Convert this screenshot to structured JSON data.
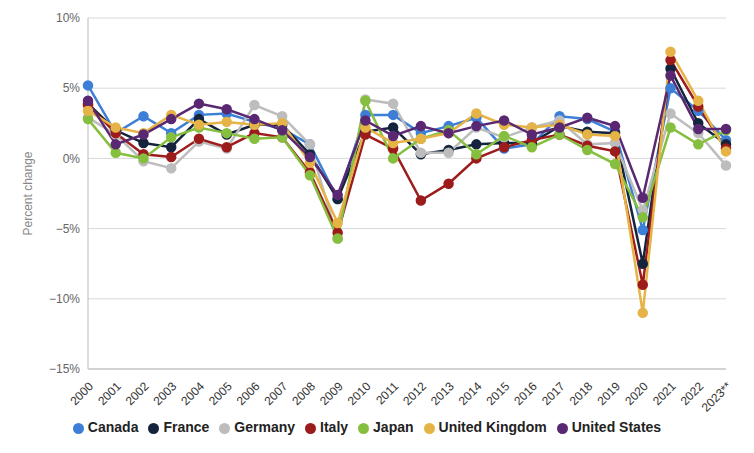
{
  "chart_data": {
    "type": "line",
    "y_label": "Percent change",
    "categories": [
      "2000",
      "2001",
      "2002",
      "2003",
      "2004",
      "2005",
      "2006",
      "2007",
      "2008",
      "2009",
      "2010",
      "2011",
      "2012",
      "2013",
      "2014",
      "2015",
      "2016",
      "2017",
      "2018",
      "2019",
      "2020",
      "2021",
      "2022",
      "2023**"
    ],
    "series": [
      {
        "name": "Canada",
        "color": "#3d7fd6",
        "values": [
          5.2,
          1.8,
          3.0,
          1.8,
          3.1,
          3.2,
          2.6,
          2.1,
          1.0,
          -2.9,
          3.1,
          3.1,
          1.8,
          2.3,
          2.9,
          0.7,
          1.0,
          3.0,
          2.8,
          1.9,
          -5.1,
          5.0,
          3.4,
          1.3
        ]
      },
      {
        "name": "France",
        "color": "#15243d",
        "values": [
          3.9,
          2.0,
          1.1,
          0.8,
          2.8,
          1.7,
          2.4,
          2.4,
          0.3,
          -2.9,
          1.9,
          2.2,
          0.3,
          0.6,
          1.0,
          1.1,
          1.1,
          2.3,
          1.9,
          1.8,
          -7.5,
          6.4,
          2.5,
          1.0
        ]
      },
      {
        "name": "Germany",
        "color": "#bdbdbd",
        "values": [
          2.9,
          1.7,
          -0.2,
          -0.7,
          1.2,
          0.7,
          3.8,
          3.0,
          1.0,
          -5.7,
          4.2,
          3.9,
          0.4,
          0.4,
          2.2,
          1.5,
          2.2,
          2.7,
          1.0,
          1.1,
          -3.7,
          3.2,
          1.8,
          -0.5
        ]
      },
      {
        "name": "Italy",
        "color": "#9c1c1c",
        "values": [
          3.8,
          1.8,
          0.3,
          0.1,
          1.4,
          0.8,
          1.8,
          1.5,
          -1.0,
          -5.3,
          1.7,
          0.7,
          -3.0,
          -1.8,
          0.0,
          0.8,
          1.3,
          1.7,
          0.9,
          0.5,
          -9.0,
          7.0,
          3.7,
          0.7
        ]
      },
      {
        "name": "Japan",
        "color": "#86bf3f",
        "values": [
          2.8,
          0.4,
          0.0,
          1.5,
          2.2,
          1.8,
          1.4,
          1.5,
          -1.2,
          -5.7,
          4.1,
          0.0,
          1.4,
          2.0,
          0.3,
          1.6,
          0.8,
          1.7,
          0.6,
          -0.4,
          -4.2,
          2.2,
          1.0,
          2.0
        ]
      },
      {
        "name": "United Kingdom",
        "color": "#e6b347",
        "values": [
          3.4,
          2.2,
          1.8,
          3.1,
          2.4,
          2.6,
          2.4,
          2.5,
          -0.3,
          -4.6,
          2.2,
          1.1,
          1.4,
          1.8,
          3.2,
          2.4,
          2.2,
          2.4,
          1.7,
          1.6,
          -11.0,
          7.6,
          4.1,
          0.5
        ]
      },
      {
        "name": "United States",
        "color": "#5a2873",
        "values": [
          4.1,
          1.0,
          1.7,
          2.8,
          3.9,
          3.5,
          2.8,
          2.0,
          0.1,
          -2.6,
          2.7,
          1.6,
          2.3,
          1.8,
          2.3,
          2.7,
          1.7,
          2.2,
          2.9,
          2.3,
          -2.8,
          5.9,
          2.1,
          2.1
        ]
      }
    ],
    "ylim": [
      -15,
      10
    ],
    "yticks": [
      {
        "value": -15,
        "label": "−15%"
      },
      {
        "value": -10,
        "label": "−10%"
      },
      {
        "value": -5,
        "label": "−5%"
      },
      {
        "value": 0,
        "label": "0%"
      },
      {
        "value": 5,
        "label": "5%"
      },
      {
        "value": 10,
        "label": "10%"
      }
    ],
    "grid": true,
    "legend": "bottom",
    "marker": "circle"
  }
}
